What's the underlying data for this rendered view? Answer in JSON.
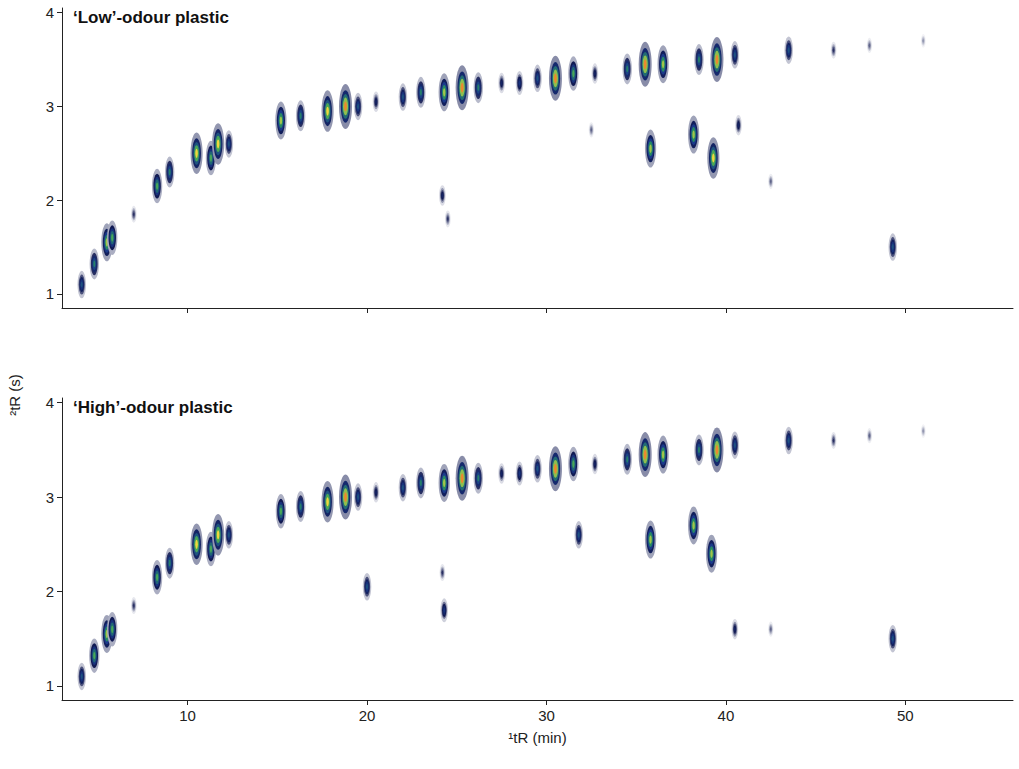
{
  "chart_data": [
    {
      "type": "heatmap",
      "title": "‘Low’-odour plastic",
      "ylabel": "²tR (s)",
      "xlim": [
        3,
        56
      ],
      "xticks": [
        10,
        20,
        30,
        40,
        50
      ],
      "ylim": [
        0.85,
        4.05
      ],
      "yticks": [
        1,
        2,
        3,
        4
      ],
      "tick_labels": "y",
      "zlim": [
        0,
        10
      ],
      "peaks": {
        "x": [
          4.1,
          4.8,
          5.5,
          5.8,
          7,
          8.3,
          9,
          10.5,
          11.3,
          11.7,
          12.3,
          15.2,
          16.3,
          17.8,
          18.8,
          19.5,
          20.5,
          22,
          23,
          24.3,
          25.3,
          26.2,
          27.5,
          28.5,
          29.5,
          30.5,
          31.5,
          32.7,
          34.5,
          35.5,
          36.5,
          38.5,
          39.5,
          40.5,
          43.5,
          46,
          48,
          51,
          24.2,
          24.5,
          35.8,
          38.2,
          39.3,
          40.7,
          42.5,
          49.3,
          32.5
        ],
        "y": [
          1.1,
          1.32,
          1.55,
          1.6,
          1.85,
          2.15,
          2.3,
          2.5,
          2.45,
          2.6,
          2.6,
          2.85,
          2.9,
          2.95,
          3.0,
          3.0,
          3.05,
          3.1,
          3.15,
          3.15,
          3.2,
          3.2,
          3.25,
          3.25,
          3.3,
          3.3,
          3.35,
          3.35,
          3.4,
          3.45,
          3.45,
          3.5,
          3.5,
          3.55,
          3.6,
          3.6,
          3.65,
          3.7,
          2.05,
          1.8,
          2.55,
          2.7,
          2.45,
          2.8,
          2.2,
          1.5,
          2.75
        ],
        "intensity": [
          5,
          6,
          8,
          7,
          2,
          7,
          6,
          9,
          7,
          9,
          5,
          8,
          6,
          9,
          10,
          5,
          3,
          5,
          6,
          8,
          10,
          6,
          3,
          4,
          5,
          10,
          7,
          3,
          6,
          10,
          8,
          6,
          10,
          5,
          5,
          2,
          1.5,
          1,
          3,
          2,
          8,
          8,
          9,
          3,
          1.5,
          5,
          1.5
        ]
      }
    },
    {
      "type": "heatmap",
      "title": "‘High’-odour plastic",
      "xlabel": "¹tR (min)",
      "xlim": [
        3,
        56
      ],
      "xticks": [
        10,
        20,
        30,
        40,
        50
      ],
      "ylim": [
        0.85,
        4.05
      ],
      "yticks": [
        1,
        2,
        3,
        4
      ],
      "zlim": [
        0,
        10
      ],
      "peaks": {
        "x": [
          4.1,
          4.8,
          5.5,
          5.8,
          7,
          8.3,
          9,
          10.5,
          11.3,
          11.7,
          12.3,
          15.2,
          16.3,
          17.8,
          18.8,
          19.5,
          20.5,
          22,
          23,
          24.3,
          25.3,
          26.2,
          27.5,
          28.5,
          29.5,
          30.5,
          31.5,
          32.7,
          34.5,
          35.5,
          36.5,
          38.5,
          39.5,
          40.5,
          43.5,
          46,
          48,
          51,
          20,
          24.3,
          31.8,
          35.8,
          38.2,
          39.2,
          40.5,
          42.5,
          49.3,
          24.2
        ],
        "y": [
          1.1,
          1.32,
          1.55,
          1.6,
          1.85,
          2.15,
          2.3,
          2.5,
          2.45,
          2.6,
          2.6,
          2.85,
          2.9,
          2.95,
          3.0,
          3.0,
          3.05,
          3.1,
          3.15,
          3.15,
          3.2,
          3.2,
          3.25,
          3.25,
          3.3,
          3.3,
          3.35,
          3.35,
          3.4,
          3.45,
          3.45,
          3.5,
          3.5,
          3.55,
          3.6,
          3.6,
          3.65,
          3.7,
          2.05,
          1.8,
          2.6,
          2.55,
          2.7,
          2.4,
          1.6,
          1.6,
          1.5,
          2.2
        ],
        "intensity": [
          5,
          7,
          8,
          7,
          2,
          7,
          6,
          9,
          7,
          9,
          5,
          7,
          6,
          9,
          10,
          5,
          3,
          5,
          6,
          8,
          10,
          6,
          3,
          4,
          5,
          10,
          7,
          3,
          6,
          10,
          8,
          6,
          10,
          5,
          5,
          2,
          1.5,
          1,
          5,
          4,
          5,
          8,
          8,
          8,
          3,
          1.5,
          5,
          2
        ]
      }
    }
  ]
}
